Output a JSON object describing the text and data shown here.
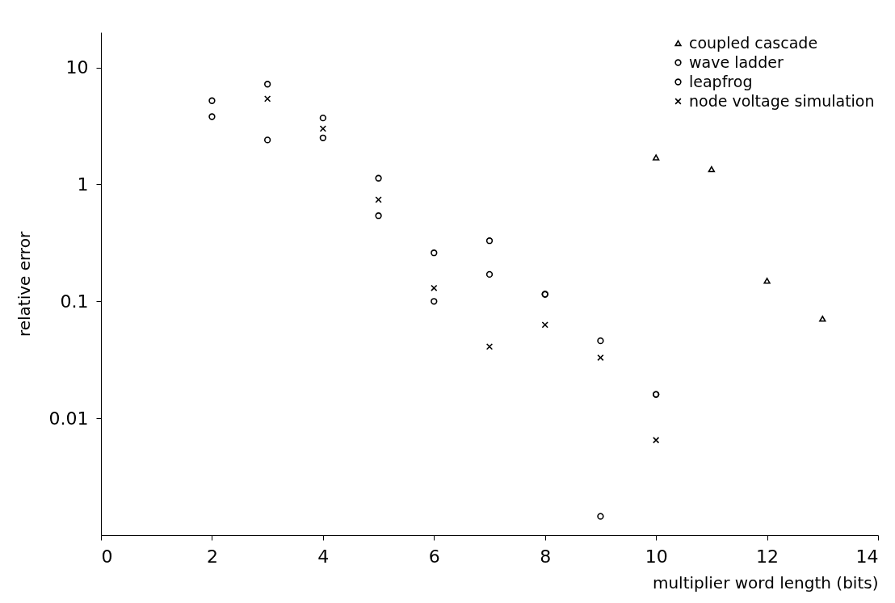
{
  "chart_data": {
    "type": "scatter",
    "xlabel": "multiplier word length (bits)",
    "ylabel": "relative error",
    "log": "y",
    "xlim": [
      0,
      14
    ],
    "xticks": [
      0,
      2,
      4,
      6,
      8,
      10,
      12,
      14
    ],
    "ylim": [
      0.001,
      20
    ],
    "yticks": [
      0.01,
      0.1,
      1,
      10
    ],
    "grid": false,
    "legend": "top right",
    "series": [
      {
        "name": "coupled cascade",
        "color": "#000000",
        "marker": "triangle",
        "x": [
          10,
          11,
          12,
          13
        ],
        "values": [
          1.7,
          1.35,
          0.15,
          0.071
        ]
      },
      {
        "name": "wave ladder",
        "color": "#000000",
        "marker": "circle",
        "x": [
          2,
          3,
          4,
          5,
          6,
          7,
          8,
          9,
          10
        ],
        "values": [
          3.8,
          2.4,
          3.7,
          0.54,
          0.1,
          0.17,
          0.115,
          0.00145,
          0.016
        ]
      },
      {
        "name": "leapfrog",
        "color": "#000000",
        "marker": "circle",
        "x": [
          2,
          3,
          4,
          5,
          6,
          7,
          8,
          9,
          10
        ],
        "values": [
          5.2,
          7.2,
          2.5,
          1.13,
          0.26,
          0.33,
          0.115,
          0.046,
          0.016
        ]
      },
      {
        "name": "node voltage simulation",
        "color": "#000000",
        "marker": "cross",
        "x": [
          3,
          4,
          5,
          6,
          7,
          8,
          9,
          10
        ],
        "values": [
          5.4,
          3.0,
          0.74,
          0.13,
          0.041,
          0.063,
          0.033,
          0.0065
        ]
      }
    ]
  }
}
